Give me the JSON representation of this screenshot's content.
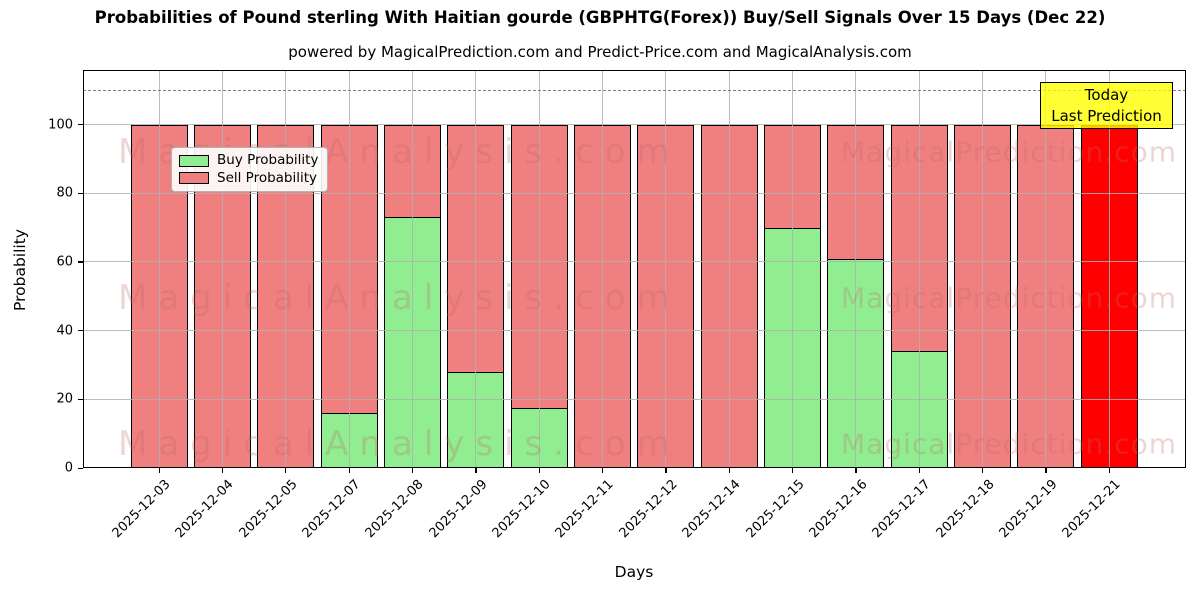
{
  "header": {
    "title": "Probabilities of Pound sterling With Haitian gourde (GBPHTG(Forex)) Buy/Sell Signals Over 15 Days (Dec 22)",
    "subtitle": "powered by MagicalPrediction.com and Predict-Price.com and MagicalAnalysis.com"
  },
  "legend": {
    "items": [
      {
        "label": "Buy Probability",
        "color": "#90ee90"
      },
      {
        "label": "Sell Probability",
        "color": "#f08080"
      }
    ]
  },
  "annotation_box": {
    "line1": "Today",
    "line2": "Last Prediction",
    "bg_color": "#ffff00"
  },
  "watermarks": {
    "left_text": "MagicalAnalysis.com",
    "right_text": "MagicalPrediction.com"
  },
  "chart_data": {
    "type": "bar",
    "stacked": true,
    "title": "Probabilities of Pound sterling With Haitian gourde (GBPHTG(Forex)) Buy/Sell Signals Over 15 Days (Dec 22)",
    "xlabel": "Days",
    "ylabel": "Probability",
    "categories": [
      "2025-12-03",
      "2025-12-04",
      "2025-12-05",
      "2025-12-07",
      "2025-12-08",
      "2025-12-09",
      "2025-12-10",
      "2025-12-11",
      "2025-12-12",
      "2025-12-14",
      "2025-12-15",
      "2025-12-16",
      "2025-12-17",
      "2025-12-18",
      "2025-12-19",
      "2025-12-21"
    ],
    "series": [
      {
        "name": "Buy Probability",
        "color": "#90ee90",
        "values": [
          0,
          0,
          0,
          16,
          73,
          28,
          17.5,
          0,
          0,
          0,
          70,
          61,
          34,
          0,
          0,
          0
        ]
      },
      {
        "name": "Sell Probability",
        "color": "#f08080",
        "values": [
          100,
          100,
          100,
          84,
          27,
          72,
          82.5,
          100,
          100,
          100,
          30,
          39,
          66,
          100,
          100,
          100
        ]
      }
    ],
    "today_bar": {
      "category": "2025-12-21",
      "index": 15,
      "color": "#ff0000",
      "value": 100
    },
    "yticks": [
      0,
      20,
      40,
      60,
      80,
      100
    ],
    "ylim": [
      0,
      115.9
    ],
    "dashed_hline_y": 110,
    "grid": true,
    "legend_position": "upper left",
    "bar_edge_color": "#000000"
  }
}
